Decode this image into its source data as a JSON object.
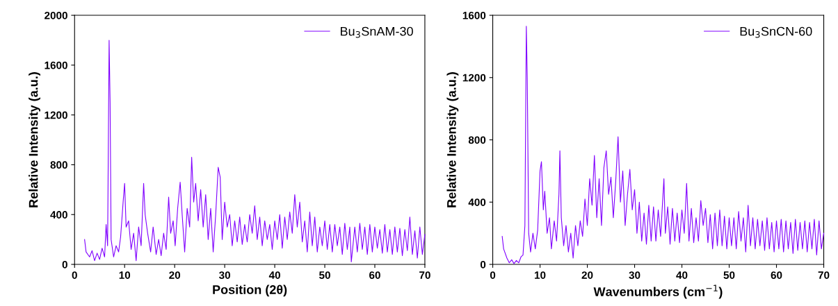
{
  "chart_data": [
    {
      "type": "line",
      "xlabel": "Position (2θ)",
      "ylabel": "Relative Intensity (a.u.)",
      "xlim": [
        0,
        70
      ],
      "ylim": [
        0,
        2000
      ],
      "xticks": [
        0,
        10,
        20,
        30,
        40,
        50,
        60,
        70
      ],
      "yticks": [
        0,
        400,
        800,
        1200,
        1600,
        2000
      ],
      "legend": "top right",
      "grid": false,
      "marker": "none",
      "line_style": "solid",
      "series": [
        {
          "name": "Bu$_{3}$SnAM-30",
          "color": "#8000ff",
          "x": [
            2,
            2.3,
            3,
            3.5,
            4,
            4.5,
            5,
            5.5,
            6,
            6.3,
            6.6,
            6.9,
            7.1,
            7.3,
            7.8,
            8.3,
            8.8,
            9.2,
            9.7,
            10,
            10.3,
            10.8,
            11.3,
            11.8,
            12.3,
            12.8,
            13.3,
            13.8,
            14.1,
            14.6,
            15.2,
            15.7,
            16.3,
            16.8,
            17.3,
            17.8,
            18.3,
            18.8,
            19.2,
            19.7,
            20.1,
            20.6,
            21.1,
            21.5,
            22,
            22.5,
            23,
            23.4,
            23.8,
            24.2,
            24.7,
            25.2,
            25.7,
            26.2,
            26.7,
            27.2,
            27.7,
            28.2,
            28.7,
            29.1,
            29.5,
            30,
            30.5,
            31,
            31.5,
            32,
            32.5,
            33,
            33.5,
            34,
            34.5,
            35,
            35.5,
            36,
            36.5,
            37,
            37.5,
            38,
            38.5,
            39,
            39.5,
            40,
            40.5,
            41,
            41.5,
            42,
            42.5,
            43,
            43.5,
            44,
            44.5,
            45,
            45.5,
            46,
            46.5,
            47,
            47.5,
            48,
            48.5,
            49,
            49.5,
            50,
            50.5,
            51,
            51.5,
            52,
            52.5,
            53,
            53.5,
            54,
            54.5,
            55,
            55.3,
            56,
            56.5,
            57,
            57.5,
            58,
            58.5,
            59,
            59.5,
            60,
            60.5,
            61,
            61.5,
            62,
            62.5,
            63,
            63.5,
            64,
            64.5,
            65,
            65.5,
            66,
            66.5,
            67,
            67.5,
            68,
            68.5,
            69,
            69.5,
            70
          ],
          "values": [
            200,
            100,
            60,
            110,
            30,
            90,
            40,
            130,
            60,
            320,
            150,
            1800,
            1300,
            200,
            60,
            150,
            100,
            220,
            500,
            650,
            300,
            350,
            120,
            250,
            30,
            300,
            150,
            650,
            400,
            250,
            100,
            300,
            80,
            200,
            70,
            250,
            120,
            540,
            250,
            350,
            150,
            450,
            660,
            400,
            100,
            450,
            300,
            860,
            500,
            650,
            350,
            600,
            300,
            560,
            200,
            450,
            100,
            400,
            780,
            700,
            200,
            500,
            300,
            400,
            150,
            350,
            180,
            380,
            160,
            320,
            180,
            400,
            250,
            470,
            200,
            380,
            150,
            350,
            200,
            320,
            120,
            350,
            200,
            400,
            130,
            380,
            200,
            420,
            250,
            560,
            300,
            500,
            180,
            350,
            100,
            420,
            150,
            380,
            100,
            300,
            150,
            350,
            120,
            320,
            100,
            320,
            150,
            300,
            80,
            330,
            120,
            300,
            20,
            300,
            100,
            330,
            120,
            300,
            80,
            320,
            100,
            300,
            130,
            280,
            90,
            320,
            100,
            280,
            80,
            300,
            100,
            290,
            70,
            280,
            110,
            380,
            80,
            270,
            50,
            300,
            80,
            240
          ]
        }
      ]
    },
    {
      "type": "line",
      "xlabel": "Wavenumbers (cm$^{−1}$)",
      "ylabel": "Relative Intensity (a.u.)",
      "xlim": [
        0,
        70
      ],
      "ylim": [
        0,
        1600
      ],
      "xticks": [
        0,
        10,
        20,
        30,
        40,
        50,
        60,
        70
      ],
      "yticks": [
        0,
        400,
        800,
        1200,
        1600
      ],
      "legend": "top right",
      "grid": false,
      "marker": "none",
      "line_style": "solid",
      "series": [
        {
          "name": "Bu$_{3}$SnCN-60",
          "color": "#8000ff",
          "x": [
            2,
            2.3,
            3,
            3.5,
            4,
            4.5,
            5,
            5.5,
            6,
            6.4,
            6.8,
            7.1,
            7.3,
            7.6,
            8,
            8.5,
            9,
            9.5,
            10,
            10.3,
            10.7,
            11,
            11.5,
            12,
            12.4,
            13,
            13.5,
            14,
            14.2,
            14.5,
            15,
            15.5,
            16,
            16.5,
            17,
            17.5,
            18,
            18.5,
            19,
            19.5,
            20,
            20.5,
            21,
            21.5,
            22,
            22.5,
            23,
            23.5,
            24,
            24.5,
            25,
            25.5,
            26,
            26.5,
            27,
            27.5,
            28,
            28.5,
            29,
            29.5,
            30,
            30.5,
            31,
            31.5,
            32,
            32.5,
            33,
            33.5,
            34,
            34.5,
            35,
            35.5,
            36.2,
            36.5,
            37,
            37.5,
            38,
            38.5,
            39,
            39.5,
            40,
            40.5,
            41,
            41.5,
            42,
            42.5,
            43,
            43.5,
            44,
            44.5,
            45,
            45.5,
            46,
            46.5,
            47,
            47.5,
            48,
            48.5,
            49,
            49.5,
            50,
            50.5,
            51,
            51.5,
            52,
            52.5,
            53,
            53.5,
            54,
            54.5,
            55,
            55.5,
            56,
            56.5,
            57,
            57.5,
            58,
            58.5,
            59,
            59.5,
            60,
            60.5,
            61,
            61.5,
            62,
            62.5,
            63,
            63.5,
            64,
            64.5,
            65,
            65.5,
            66,
            66.5,
            67,
            67.5,
            68,
            68.5,
            69,
            69.5,
            70
          ],
          "values": [
            180,
            100,
            40,
            10,
            30,
            5,
            25,
            10,
            50,
            60,
            250,
            1530,
            1200,
            200,
            80,
            200,
            100,
            220,
            600,
            660,
            350,
            470,
            200,
            300,
            100,
            280,
            150,
            450,
            730,
            300,
            120,
            250,
            80,
            200,
            40,
            250,
            120,
            280,
            180,
            420,
            250,
            550,
            380,
            700,
            300,
            550,
            250,
            620,
            730,
            450,
            560,
            300,
            530,
            820,
            400,
            600,
            250,
            450,
            610,
            350,
            480,
            200,
            400,
            150,
            330,
            130,
            380,
            150,
            370,
            150,
            350,
            180,
            550,
            200,
            370,
            130,
            360,
            150,
            330,
            140,
            350,
            200,
            520,
            150,
            360,
            140,
            300,
            150,
            410,
            250,
            360,
            140,
            320,
            100,
            330,
            120,
            350,
            120,
            310,
            100,
            300,
            120,
            300,
            100,
            340,
            150,
            300,
            80,
            380,
            120,
            300,
            100,
            290,
            120,
            280,
            90,
            300,
            100,
            270,
            80,
            280,
            100,
            290,
            80,
            280,
            100,
            270,
            70,
            290,
            90,
            270,
            100,
            280,
            80,
            270,
            100,
            290,
            60,
            280,
            100,
            200
          ]
        }
      ]
    }
  ]
}
